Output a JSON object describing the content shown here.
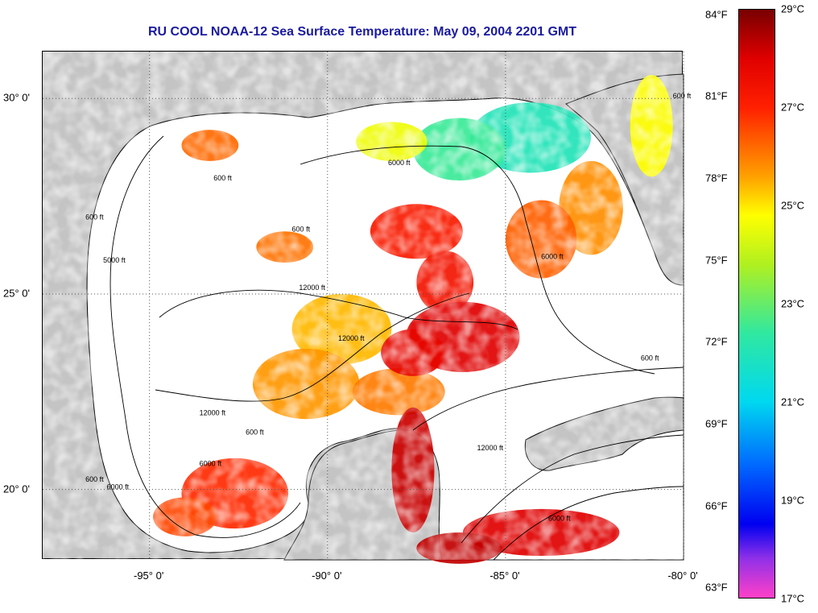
{
  "title": "RU COOL  NOAA-12  Sea Surface Temperature:  May 09, 2004 2201 GMT",
  "map": {
    "lon_range": [
      -98,
      -80
    ],
    "lat_range": [
      18.2,
      31.2
    ],
    "x_ticks": [
      {
        "lon": -95,
        "label": "-95° 0'"
      },
      {
        "lon": -90,
        "label": "-90° 0'"
      },
      {
        "lon": -85,
        "label": "-85° 0'"
      },
      {
        "lon": -80,
        "label": "-80° 0'"
      }
    ],
    "y_ticks": [
      {
        "lat": 30,
        "label": "30° 0'"
      },
      {
        "lat": 25,
        "label": "25° 0'"
      },
      {
        "lat": 20,
        "label": "20° 0'"
      }
    ],
    "grid": "dotted",
    "land_color": "#c4c4c4",
    "cloud_color": "#ffffff",
    "contour_labels": [
      {
        "text": "600 ft",
        "lon": -93.2,
        "lat": 27.9
      },
      {
        "text": "600 ft",
        "lon": -96.8,
        "lat": 26.9
      },
      {
        "text": "5000 ft",
        "lon": -96.3,
        "lat": 25.8
      },
      {
        "text": "6000 ft",
        "lon": -88.3,
        "lat": 28.3
      },
      {
        "text": "6000 ft",
        "lon": -84.0,
        "lat": 25.9
      },
      {
        "text": "600 ft",
        "lon": -91.0,
        "lat": 26.6
      },
      {
        "text": "12000 ft",
        "lon": -90.8,
        "lat": 25.1
      },
      {
        "text": "12000 ft",
        "lon": -89.7,
        "lat": 23.8
      },
      {
        "text": "12000 ft",
        "lon": -93.6,
        "lat": 21.9
      },
      {
        "text": "600 ft",
        "lon": -92.3,
        "lat": 21.4
      },
      {
        "text": "6000 ft",
        "lon": -93.6,
        "lat": 20.6
      },
      {
        "text": "600 ft",
        "lon": -96.8,
        "lat": 20.2
      },
      {
        "text": "6000 ft",
        "lon": -96.2,
        "lat": 20.0
      },
      {
        "text": "600 ft",
        "lon": -81.2,
        "lat": 23.3
      },
      {
        "text": "12000 ft",
        "lon": -85.8,
        "lat": 21.0
      },
      {
        "text": "6000 ft",
        "lon": -83.8,
        "lat": 19.2
      },
      {
        "text": "600 ft",
        "lon": -80.3,
        "lat": 30.0
      }
    ],
    "sst_patches": [
      {
        "lon": -84.3,
        "lat": 29.0,
        "rx": 1.7,
        "ry": 0.9,
        "temp_c": 22.0
      },
      {
        "lon": -86.3,
        "lat": 28.7,
        "rx": 1.3,
        "ry": 0.8,
        "temp_c": 22.5
      },
      {
        "lon": -88.2,
        "lat": 28.9,
        "rx": 1.0,
        "ry": 0.5,
        "temp_c": 24.6
      },
      {
        "lon": -82.6,
        "lat": 27.2,
        "rx": 0.9,
        "ry": 1.2,
        "temp_c": 25.8
      },
      {
        "lon": -84.0,
        "lat": 26.4,
        "rx": 1.0,
        "ry": 1.0,
        "temp_c": 26.3
      },
      {
        "lon": -80.9,
        "lat": 29.3,
        "rx": 0.6,
        "ry": 1.3,
        "temp_c": 24.8
      },
      {
        "lon": -87.5,
        "lat": 26.6,
        "rx": 1.3,
        "ry": 0.7,
        "temp_c": 27.2
      },
      {
        "lon": -86.7,
        "lat": 25.3,
        "rx": 0.8,
        "ry": 0.8,
        "temp_c": 27.4
      },
      {
        "lon": -89.6,
        "lat": 24.1,
        "rx": 1.4,
        "ry": 0.9,
        "temp_c": 25.4
      },
      {
        "lon": -90.6,
        "lat": 22.7,
        "rx": 1.5,
        "ry": 0.9,
        "temp_c": 25.7
      },
      {
        "lon": -88.0,
        "lat": 22.5,
        "rx": 1.3,
        "ry": 0.6,
        "temp_c": 26.0
      },
      {
        "lon": -86.2,
        "lat": 23.9,
        "rx": 1.6,
        "ry": 0.9,
        "temp_c": 28.0
      },
      {
        "lon": -87.6,
        "lat": 23.5,
        "rx": 0.9,
        "ry": 0.6,
        "temp_c": 27.8
      },
      {
        "lon": -92.6,
        "lat": 19.9,
        "rx": 1.5,
        "ry": 0.9,
        "temp_c": 26.9
      },
      {
        "lon": -94.0,
        "lat": 19.3,
        "rx": 0.9,
        "ry": 0.5,
        "temp_c": 26.6
      },
      {
        "lon": -91.2,
        "lat": 26.2,
        "rx": 0.8,
        "ry": 0.4,
        "temp_c": 26.1
      },
      {
        "lon": -93.3,
        "lat": 28.8,
        "rx": 0.8,
        "ry": 0.4,
        "temp_c": 26.2
      },
      {
        "lon": -87.6,
        "lat": 20.5,
        "rx": 0.6,
        "ry": 1.6,
        "temp_c": 28.2
      },
      {
        "lon": -84.0,
        "lat": 18.9,
        "rx": 2.2,
        "ry": 0.6,
        "temp_c": 28.0
      },
      {
        "lon": -86.3,
        "lat": 18.5,
        "rx": 1.2,
        "ry": 0.4,
        "temp_c": 28.3
      }
    ]
  },
  "colorbar": {
    "min_c": 17,
    "max_c": 29,
    "stops": [
      {
        "c": 17.0,
        "color": "#ff40c8"
      },
      {
        "c": 17.8,
        "color": "#9030e8"
      },
      {
        "c": 18.5,
        "color": "#0000f0"
      },
      {
        "c": 19.7,
        "color": "#0068ff"
      },
      {
        "c": 21.0,
        "color": "#00d8f0"
      },
      {
        "c": 22.4,
        "color": "#30e8a0"
      },
      {
        "c": 23.8,
        "color": "#b0f020"
      },
      {
        "c": 24.8,
        "color": "#ffff00"
      },
      {
        "c": 25.6,
        "color": "#ffa000"
      },
      {
        "c": 27.0,
        "color": "#ff2000"
      },
      {
        "c": 28.0,
        "color": "#e00000"
      },
      {
        "c": 29.0,
        "color": "#780000"
      }
    ],
    "celsius_labels": [
      "29°C",
      "27°C",
      "25°C",
      "23°C",
      "21°C",
      "19°C",
      "17°C"
    ],
    "celsius_values": [
      29,
      27,
      25,
      23,
      21,
      19,
      17
    ],
    "fahrenheit_labels": [
      "84°F",
      "81°F",
      "78°F",
      "75°F",
      "72°F",
      "69°F",
      "66°F",
      "63°F"
    ],
    "fahrenheit_values": [
      84,
      81,
      78,
      75,
      72,
      69,
      66,
      63
    ]
  }
}
